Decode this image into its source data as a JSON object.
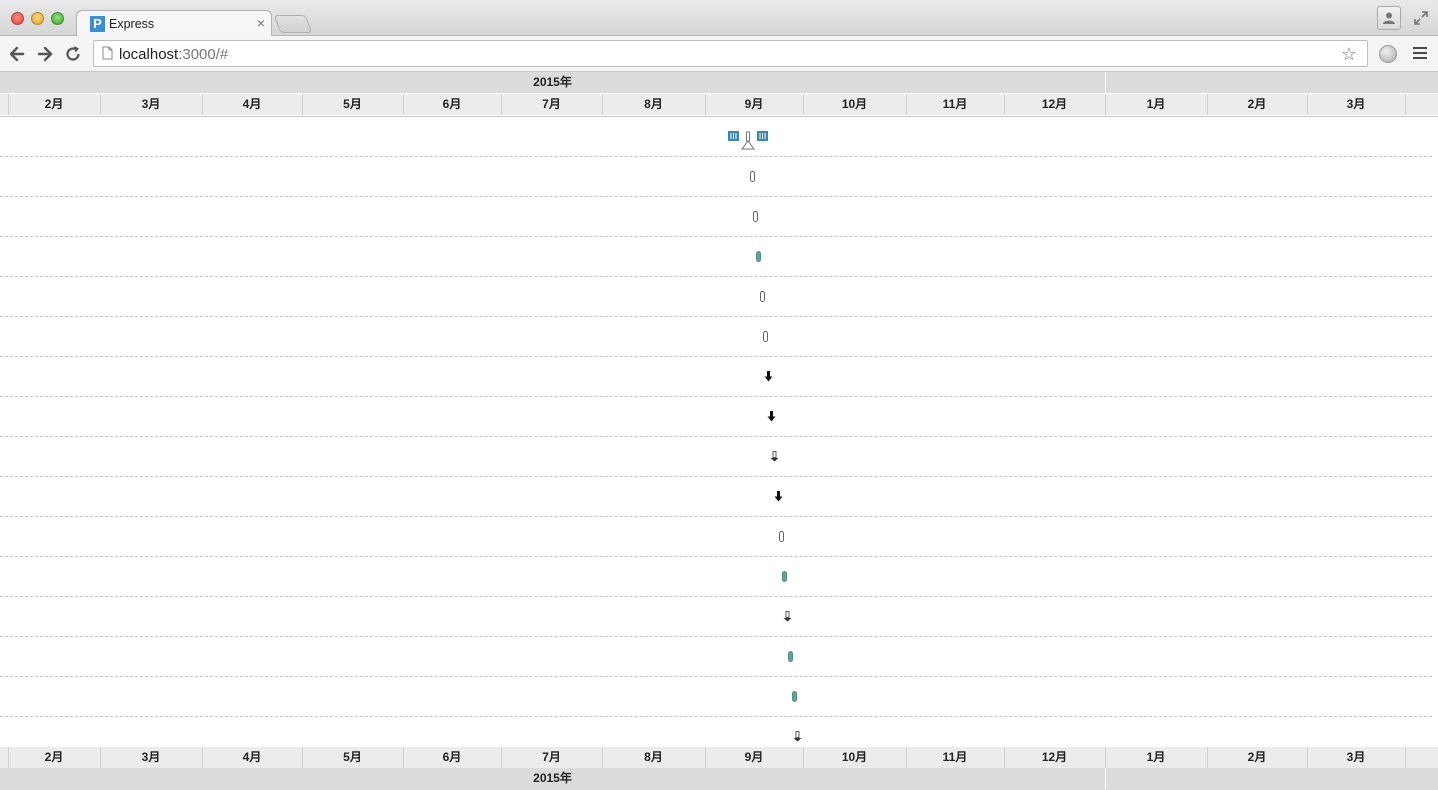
{
  "browser": {
    "tab_title": "Express",
    "tab_favicon_letter": "P",
    "url_host": "localhost",
    "url_rest": ":3000/#",
    "icons": [
      "close-icon",
      "back-arrow-icon",
      "forward-arrow-icon",
      "reload-icon",
      "page-icon",
      "bookmark-star-icon",
      "extension-globe-icon",
      "menu-icon",
      "profile-icon",
      "fullscreen-icon"
    ]
  },
  "timeline": {
    "year_top": "2015年",
    "year_bottom": "2015年",
    "months": [
      "2月",
      "3月",
      "4月",
      "5月",
      "6月",
      "7月",
      "8月",
      "9月",
      "10月",
      "11月",
      "12月",
      "1月",
      "2月",
      "3月"
    ],
    "lane_count": 16,
    "markers": [
      {
        "lane": 2,
        "kind": "outline",
        "color": "#555555"
      },
      {
        "lane": 3,
        "kind": "outline",
        "color": "#555555"
      },
      {
        "lane": 4,
        "kind": "filled",
        "color": "#5aa897"
      },
      {
        "lane": 5,
        "kind": "outline",
        "color": "#555555"
      },
      {
        "lane": 6,
        "kind": "outline",
        "color": "#555555"
      },
      {
        "lane": 7,
        "kind": "arrow",
        "color": "#111111"
      },
      {
        "lane": 8,
        "kind": "arrow",
        "color": "#111111"
      },
      {
        "lane": 9,
        "kind": "arrow-outline",
        "color": "#333333"
      },
      {
        "lane": 10,
        "kind": "arrow",
        "color": "#111111"
      },
      {
        "lane": 11,
        "kind": "outline",
        "color": "#555555"
      },
      {
        "lane": 12,
        "kind": "filled",
        "color": "#5aa897"
      },
      {
        "lane": 13,
        "kind": "arrow-outline",
        "color": "#333333"
      },
      {
        "lane": 14,
        "kind": "filled",
        "color": "#5aa897"
      },
      {
        "lane": 15,
        "kind": "filled",
        "color": "#5aa897"
      },
      {
        "lane": 16,
        "kind": "arrow-outline",
        "color": "#333333"
      }
    ],
    "scrubber_color": "#3a87b5"
  }
}
